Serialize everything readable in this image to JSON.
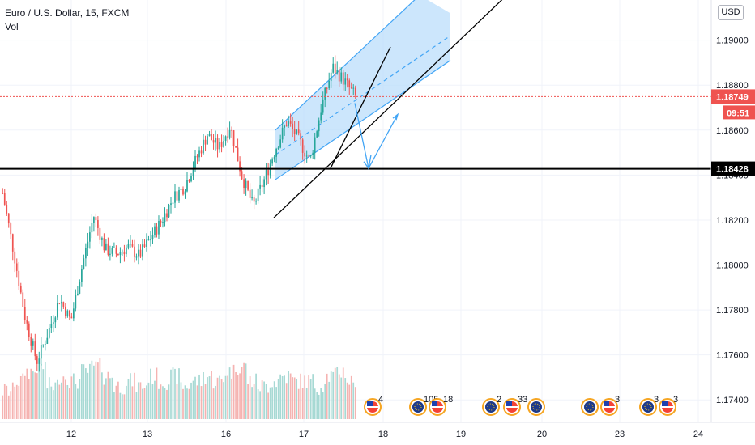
{
  "header": {
    "symbol_line": "Euro / U.S. Dollar, 15, FXCM",
    "volume_label": "Vol"
  },
  "price_axis": {
    "currency_button": "USD",
    "ticks": [
      "1.19000",
      "1.18800",
      "1.18600",
      "1.18400",
      "1.18200",
      "1.18000",
      "1.17800",
      "1.17600",
      "1.17400"
    ],
    "current_price": "1.18749",
    "countdown": "09:51",
    "level_price": "1.18428"
  },
  "time_axis": {
    "ticks": [
      "12",
      "13",
      "16",
      "17",
      "18",
      "19",
      "20",
      "23",
      "24"
    ]
  },
  "events": [
    {
      "label": "4",
      "flags": [
        "usd"
      ]
    },
    {
      "label": "105",
      "flags": [
        "eur",
        "usd"
      ]
    },
    {
      "label": "18",
      "flags": [
        "usd"
      ]
    },
    {
      "label": "2",
      "flags": [
        "eur"
      ]
    },
    {
      "label": "33",
      "flags": [
        "usd",
        "eur"
      ]
    },
    {
      "label": "",
      "flags": [
        "eur"
      ]
    },
    {
      "label": "",
      "flags": [
        "eur"
      ]
    },
    {
      "label": "3",
      "flags": [
        "usd"
      ]
    },
    {
      "label": "3",
      "flags": [
        "eur"
      ]
    },
    {
      "label": "3",
      "flags": [
        "usd"
      ]
    }
  ],
  "colors": {
    "up": "#26a69a",
    "down": "#ef5350",
    "channel_fill": "#bbdefb",
    "channel_line": "#42a5f5",
    "level_line": "#000000",
    "price_badge": "#ef5350"
  },
  "chart_data": {
    "type": "candlestick",
    "title": "Euro / U.S. Dollar, 15, FXCM",
    "ylabel": "",
    "ylim": [
      1.173,
      1.1915
    ],
    "x_ticks": [
      "12",
      "13",
      "16",
      "17",
      "18",
      "19",
      "20",
      "23",
      "24"
    ],
    "current_price": 1.18749,
    "horizontal_level": 1.18428,
    "price_path": [
      {
        "date": "11",
        "close": 1.1832
      },
      {
        "date": "11",
        "close": 1.1805
      },
      {
        "date": "11",
        "close": 1.1776
      },
      {
        "date": "11",
        "close": 1.1757
      },
      {
        "date": "12",
        "close": 1.177
      },
      {
        "date": "12",
        "close": 1.1785
      },
      {
        "date": "12",
        "close": 1.1775
      },
      {
        "date": "12",
        "close": 1.18
      },
      {
        "date": "12",
        "close": 1.1822
      },
      {
        "date": "12",
        "close": 1.1807
      },
      {
        "date": "13",
        "close": 1.1805
      },
      {
        "date": "13",
        "close": 1.1808
      },
      {
        "date": "13",
        "close": 1.1804
      },
      {
        "date": "13",
        "close": 1.1812
      },
      {
        "date": "13",
        "close": 1.182
      },
      {
        "date": "13",
        "close": 1.183
      },
      {
        "date": "16",
        "close": 1.1835
      },
      {
        "date": "16",
        "close": 1.1847
      },
      {
        "date": "16",
        "close": 1.1858
      },
      {
        "date": "16",
        "close": 1.1852
      },
      {
        "date": "16",
        "close": 1.1862
      },
      {
        "date": "16",
        "close": 1.184
      },
      {
        "date": "16",
        "close": 1.1826
      },
      {
        "date": "17",
        "close": 1.1838
      },
      {
        "date": "17",
        "close": 1.1852
      },
      {
        "date": "17",
        "close": 1.1864
      },
      {
        "date": "17",
        "close": 1.1856
      },
      {
        "date": "17",
        "close": 1.1846
      },
      {
        "date": "17",
        "close": 1.187
      },
      {
        "date": "17",
        "close": 1.1888
      },
      {
        "date": "17",
        "close": 1.1882
      },
      {
        "date": "17",
        "close": 1.1875
      }
    ],
    "volume": [
      4,
      6,
      8,
      9,
      5,
      7,
      6,
      8,
      9,
      7,
      5,
      6,
      5,
      7,
      6,
      7,
      5,
      6,
      7,
      6,
      8,
      9,
      6,
      5,
      6,
      7,
      6,
      6,
      5,
      7,
      8,
      6
    ],
    "drawings": [
      "ascending channel",
      "trend line",
      "projection arrows",
      "horizontal level 1.18428"
    ]
  }
}
